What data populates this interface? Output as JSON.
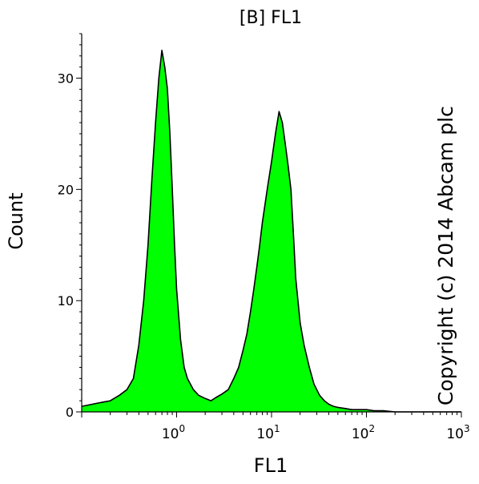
{
  "chart_data": {
    "type": "area",
    "title": "[B] FL1",
    "xlabel": "FL1",
    "ylabel": "Count",
    "x_scale": "log",
    "xlim": [
      0.1,
      1000
    ],
    "ylim": [
      0,
      34
    ],
    "x_ticks": [
      {
        "value": 1,
        "base": "10",
        "exp": "0"
      },
      {
        "value": 10,
        "base": "10",
        "exp": "1"
      },
      {
        "value": 100,
        "base": "10",
        "exp": "2"
      },
      {
        "value": 1000,
        "base": "10",
        "exp": "3"
      }
    ],
    "y_ticks": [
      0,
      10,
      20,
      30
    ],
    "grid": false,
    "fill_color": "#00ff00",
    "line_color": "#000000",
    "annotation": "Copyright (c) 2014 Abcam plc",
    "series": [
      {
        "x": [
          0.1,
          0.15,
          0.2,
          0.25,
          0.3,
          0.35,
          0.4,
          0.45,
          0.5,
          0.55,
          0.6,
          0.65,
          0.7,
          0.75,
          0.8,
          0.85,
          0.9,
          0.95,
          1.0,
          1.1,
          1.2,
          1.3,
          1.5,
          1.7,
          2.0,
          2.3,
          2.6,
          3.0,
          3.5,
          4.0,
          4.5,
          5.0,
          5.5,
          6.0,
          6.5,
          7.0,
          7.5,
          8.0,
          9.0,
          10.0,
          11.0,
          12.0,
          13.0,
          14.0,
          15.0,
          16.0,
          17.0,
          18.0,
          20.0,
          22.0,
          25.0,
          28.0,
          32.0,
          36.0,
          40.0,
          45.0,
          50.0,
          60.0,
          70.0,
          80.0,
          100.0,
          120.0,
          150.0,
          200.0,
          300.0,
          500.0,
          1000.0
        ],
        "y": [
          0.5,
          0.8,
          1.0,
          1.5,
          2.0,
          3.0,
          6.0,
          10.0,
          15.0,
          21.0,
          26.0,
          30.0,
          32.5,
          31.0,
          29.0,
          25.0,
          20.0,
          15.0,
          11.0,
          6.5,
          4.0,
          3.0,
          2.0,
          1.5,
          1.2,
          1.0,
          1.3,
          1.6,
          2.0,
          3.0,
          4.0,
          5.5,
          7.0,
          9.0,
          11.0,
          13.0,
          15.0,
          17.0,
          20.0,
          22.5,
          25.0,
          27.0,
          26.0,
          24.0,
          22.0,
          20.0,
          16.0,
          12.0,
          8.0,
          6.0,
          4.0,
          2.5,
          1.5,
          1.0,
          0.7,
          0.5,
          0.4,
          0.3,
          0.2,
          0.2,
          0.2,
          0.1,
          0.1,
          0.0,
          0.0,
          0.0,
          0.0
        ]
      }
    ]
  }
}
